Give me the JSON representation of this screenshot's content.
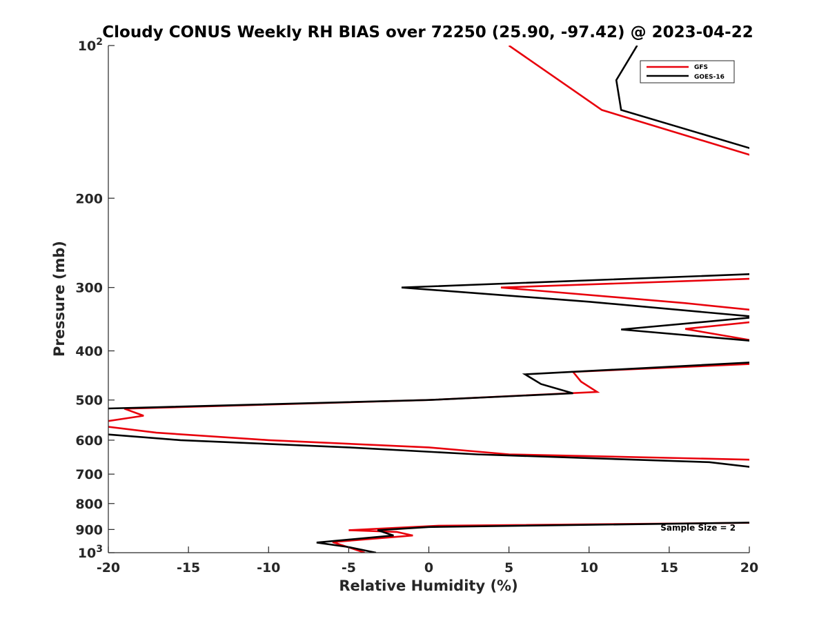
{
  "chart_data": {
    "type": "line",
    "title": "Cloudy CONUS Weekly RH BIAS over 72250 (25.90, -97.42) @ 2023-04-22",
    "xlabel": "Relative Humidity (%)",
    "ylabel": "Pressure (mb)",
    "xlim": [
      -20,
      20
    ],
    "ylim": [
      100,
      1000
    ],
    "yscale": "log",
    "y_reversed": true,
    "x_ticks": [
      -20,
      -15,
      -10,
      -5,
      0,
      5,
      10,
      15,
      20
    ],
    "x_tick_labels": [
      "-20",
      "-15",
      "-10",
      "-5",
      "0",
      "5",
      "10",
      "15",
      "20"
    ],
    "y_ticks": [
      100,
      200,
      300,
      400,
      500,
      600,
      700,
      800,
      900,
      1000
    ],
    "y_tick_labels": [
      "10^2",
      "200",
      "300",
      "400",
      "500",
      "600",
      "700",
      "800",
      "900",
      "10^3"
    ],
    "grid": false,
    "legend_position": "top-right",
    "series": [
      {
        "name": "GFS",
        "color": "#e8000b",
        "points": [
          [
            5.0,
            100
          ],
          [
            10.8,
            134
          ],
          [
            20.5,
            166
          ],
          [
            null,
            null
          ],
          [
            20.5,
            288
          ],
          [
            4.5,
            300
          ],
          [
            16.0,
            322
          ],
          [
            20.5,
            333
          ],
          [
            null,
            null
          ],
          [
            20.5,
            350
          ],
          [
            16.0,
            362
          ],
          [
            20.5,
            383
          ],
          [
            null,
            null
          ],
          [
            20.5,
            424
          ],
          [
            9.0,
            440
          ],
          [
            9.5,
            460
          ],
          [
            10.5,
            482
          ],
          [
            0,
            500
          ],
          [
            -19.0,
            520
          ],
          [
            -17.8,
            537
          ],
          [
            -20.5,
            553
          ],
          [
            null,
            null
          ],
          [
            -20.5,
            562
          ],
          [
            -17.0,
            580
          ],
          [
            -10.0,
            600
          ],
          [
            0,
            620
          ],
          [
            5.0,
            640
          ],
          [
            20.5,
            656
          ],
          [
            null,
            null
          ],
          [
            20.5,
            873
          ],
          [
            0.5,
            885
          ],
          [
            -5.0,
            903
          ],
          [
            -2.0,
            910
          ],
          [
            -1.0,
            925
          ],
          [
            -6.0,
            953
          ],
          [
            -4.0,
            1000
          ]
        ]
      },
      {
        "name": "GOES-16",
        "color": "#000000",
        "points": [
          [
            13.0,
            100
          ],
          [
            11.7,
            117
          ],
          [
            12.0,
            134
          ],
          [
            20.5,
            161
          ],
          [
            null,
            null
          ],
          [
            20.5,
            282
          ],
          [
            -1.7,
            300
          ],
          [
            10.0,
            320
          ],
          [
            20.5,
            343
          ],
          [
            null,
            null
          ],
          [
            20.5,
            343
          ],
          [
            12.0,
            363
          ],
          [
            20.5,
            383
          ],
          [
            null,
            null
          ],
          [
            20.5,
            421
          ],
          [
            6.0,
            445
          ],
          [
            7.0,
            465
          ],
          [
            9.0,
            485
          ],
          [
            0,
            500
          ],
          [
            -20.5,
            520
          ],
          [
            null,
            null
          ],
          [
            -20.5,
            583
          ],
          [
            -15.5,
            600
          ],
          [
            -5.0,
            620
          ],
          [
            3.0,
            640
          ],
          [
            17.5,
            663
          ],
          [
            20.5,
            680
          ],
          [
            null,
            null
          ],
          [
            20.5,
            872
          ],
          [
            0,
            890
          ],
          [
            -3.2,
            903
          ],
          [
            -2.2,
            925
          ],
          [
            -7.0,
            955
          ],
          [
            -5.0,
            975
          ],
          [
            -3.3,
            1000
          ]
        ]
      }
    ],
    "annotations": [
      {
        "text": "Sample Size = 2",
        "x": 16.8,
        "y": 905
      }
    ]
  }
}
